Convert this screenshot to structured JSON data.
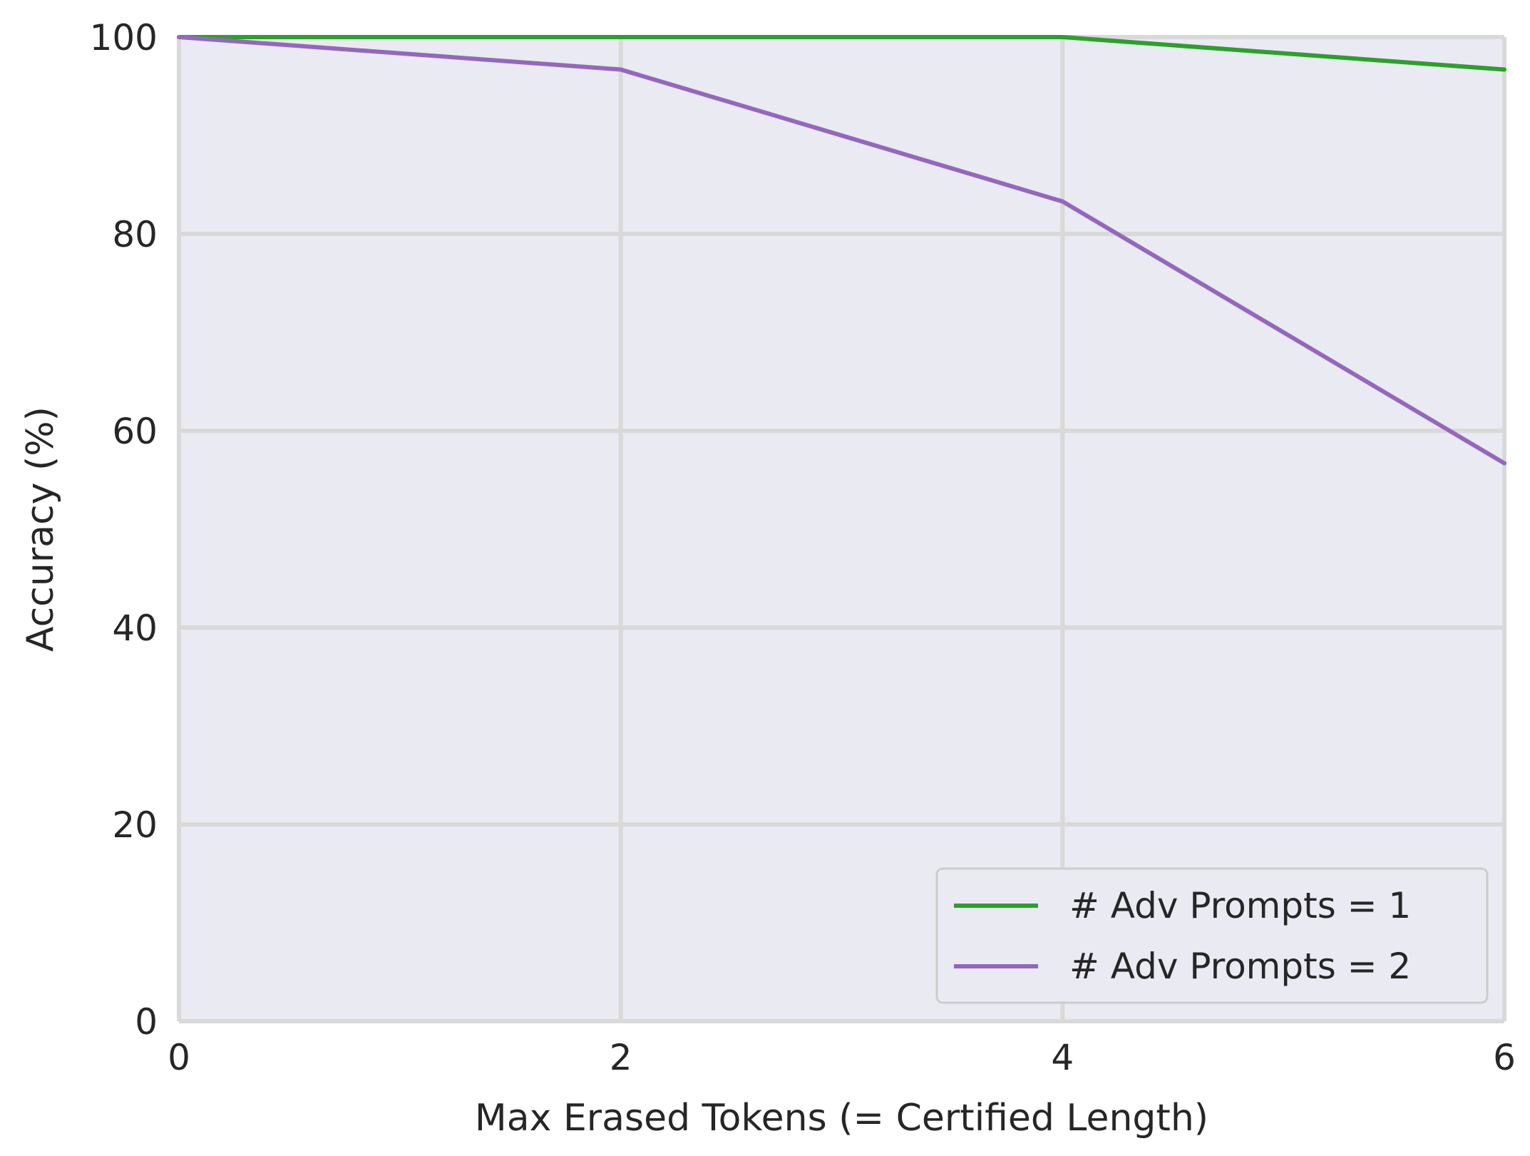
{
  "chart_data": {
    "type": "line",
    "xlabel": "Max Erased Tokens (= Certified Length)",
    "ylabel": "Accuracy (%)",
    "xlim": [
      0,
      6
    ],
    "ylim": [
      0,
      100
    ],
    "xticks": [
      0,
      2,
      4,
      6
    ],
    "yticks": [
      0,
      20,
      40,
      60,
      80,
      100
    ],
    "grid": true,
    "legend_position": "lower-right",
    "x": [
      0,
      2,
      4,
      6
    ],
    "series": [
      {
        "name": "# Adv Prompts = 1",
        "color": "#2ca02c",
        "values": [
          100,
          100,
          100,
          96.7
        ]
      },
      {
        "name": "# Adv Prompts = 2",
        "color": "#9467bd",
        "values": [
          100,
          96.7,
          83.3,
          56.7
        ]
      }
    ],
    "colors": {
      "plot_background": "#eaeaf2",
      "grid": "#d9d9d9",
      "text": "#262626"
    }
  }
}
